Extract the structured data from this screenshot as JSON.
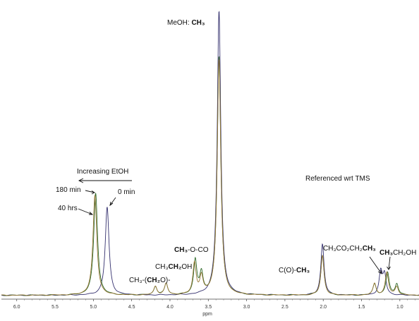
{
  "chart_data": {
    "type": "line",
    "xlabel": "ppm",
    "xlim": [
      6.2,
      0.75
    ],
    "x_reversed": true,
    "x_ticks": [
      "6.0",
      "5.5",
      "5.0",
      "4.5",
      "4.0",
      "3.5",
      "3.0",
      "2.5",
      "2.0",
      "1.5",
      "1.0"
    ],
    "x_tick_values": [
      6.0,
      5.5,
      5.0,
      4.5,
      4.0,
      3.5,
      3.0,
      2.5,
      2.0,
      1.5,
      1.0
    ],
    "ylim": [
      0,
      100
    ],
    "grid": false,
    "series": [
      {
        "color": "#34306e",
        "peaks": [
          {
            "ppm": 4.82,
            "height": 31,
            "width": 0.03
          },
          {
            "ppm": 3.36,
            "height": 100,
            "width": 0.028
          },
          {
            "ppm": 2.01,
            "height": 18,
            "width": 0.025
          },
          {
            "ppm": 1.25,
            "height": 8,
            "width": 0.025
          },
          {
            "ppm": 1.2,
            "height": 7,
            "width": 0.025
          }
        ]
      },
      {
        "color": "#2f6a2a",
        "peaks": [
          {
            "ppm": 4.97,
            "height": 36,
            "width": 0.03
          },
          {
            "ppm": 4.19,
            "height": 3,
            "width": 0.025
          },
          {
            "ppm": 4.05,
            "height": 4,
            "width": 0.025
          },
          {
            "ppm": 3.67,
            "height": 12,
            "width": 0.025
          },
          {
            "ppm": 3.59,
            "height": 7,
            "width": 0.025
          },
          {
            "ppm": 3.36,
            "height": 84,
            "width": 0.028
          },
          {
            "ppm": 2.01,
            "height": 14,
            "width": 0.025
          },
          {
            "ppm": 1.33,
            "height": 4,
            "width": 0.025
          },
          {
            "ppm": 1.16,
            "height": 8,
            "width": 0.025
          },
          {
            "ppm": 1.04,
            "height": 4,
            "width": 0.025
          }
        ]
      },
      {
        "color": "#9a7a3a",
        "peaks": [
          {
            "ppm": 4.98,
            "height": 35,
            "width": 0.03
          },
          {
            "ppm": 4.19,
            "height": 3,
            "width": 0.025
          },
          {
            "ppm": 4.05,
            "height": 4,
            "width": 0.025
          },
          {
            "ppm": 3.68,
            "height": 11,
            "width": 0.025
          },
          {
            "ppm": 3.59,
            "height": 6,
            "width": 0.025
          },
          {
            "ppm": 3.36,
            "height": 83,
            "width": 0.028
          },
          {
            "ppm": 2.01,
            "height": 14,
            "width": 0.025
          },
          {
            "ppm": 1.33,
            "height": 4,
            "width": 0.025
          },
          {
            "ppm": 1.17,
            "height": 8,
            "width": 0.025
          },
          {
            "ppm": 1.04,
            "height": 3,
            "width": 0.025
          }
        ]
      }
    ],
    "annotations": [
      {
        "id": "meoh",
        "parts": [
          {
            "t": "MeOH: ",
            "b": false
          },
          {
            "t": "CH₃",
            "b": true
          }
        ]
      },
      {
        "id": "increasing",
        "parts": [
          {
            "t": "Increasing EtOH",
            "b": false
          }
        ]
      },
      {
        "id": "m180",
        "parts": [
          {
            "t": "180 min",
            "b": false
          }
        ]
      },
      {
        "id": "m0",
        "parts": [
          {
            "t": "0 min",
            "b": false
          }
        ]
      },
      {
        "id": "h40",
        "parts": [
          {
            "t": "40 hrs",
            "b": false
          }
        ]
      },
      {
        "id": "ref",
        "parts": [
          {
            "t": "Referenced wrt TMS",
            "b": false
          }
        ]
      },
      {
        "id": "ch3oco",
        "parts": [
          {
            "t": "CH₃",
            "b": true
          },
          {
            "t": "-O-CO",
            "b": false
          }
        ]
      },
      {
        "id": "ch3ch2oh_a",
        "parts": [
          {
            "t": "CH₃",
            "b": false
          },
          {
            "t": "CH₂",
            "b": true
          },
          {
            "t": "OH",
            "b": false
          }
        ]
      },
      {
        "id": "ch3ch2o",
        "parts": [
          {
            "t": "CH₃-(",
            "b": false
          },
          {
            "t": "CH₂",
            "b": true
          },
          {
            "t": "O)-",
            "b": false
          }
        ]
      },
      {
        "id": "coch3",
        "parts": [
          {
            "t": "C(O)-",
            "b": false
          },
          {
            "t": "CH₃",
            "b": true
          }
        ]
      },
      {
        "id": "ch3co2",
        "parts": [
          {
            "t": "CH₃CO₂CH₂",
            "b": false
          },
          {
            "t": "CH₃",
            "b": true
          }
        ]
      },
      {
        "id": "ch3ch2oh_b",
        "parts": [
          {
            "t": "CH₃",
            "b": true
          },
          {
            "t": "CH₂OH",
            "b": false
          }
        ]
      }
    ]
  }
}
